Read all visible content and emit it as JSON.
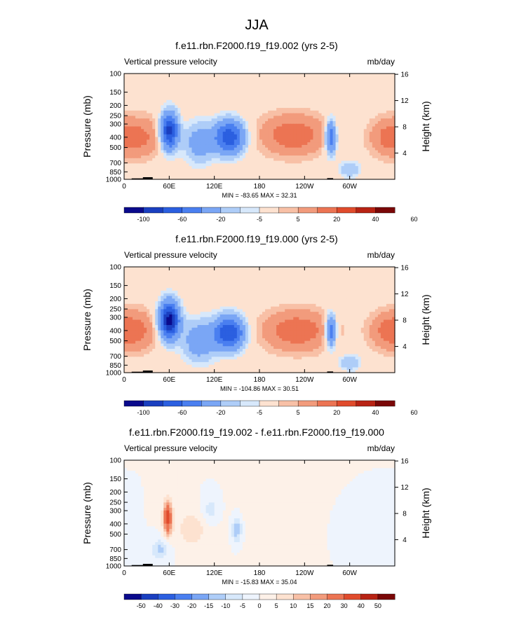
{
  "figure": {
    "title": "JJA",
    "colors": {
      "seq": [
        "#0a0a8c",
        "#1a3fc0",
        "#2b5fe0",
        "#4a7ff0",
        "#7aa6f5",
        "#aecdf8",
        "#d7e8fb",
        "#fde2d0",
        "#f8c0a6",
        "#f29b7c",
        "#ec7453",
        "#e04b2c",
        "#b82314",
        "#7a0707"
      ],
      "div": [
        "#0a0a8c",
        "#1a3fc0",
        "#2b5fe0",
        "#4a7ff0",
        "#7aa6f5",
        "#aecdf8",
        "#d7e8fb",
        "#eef4fd",
        "#fdf1e8",
        "#fde2d0",
        "#f8c0a6",
        "#f29b7c",
        "#ec7453",
        "#e04b2c",
        "#b82314",
        "#7a0707"
      ]
    }
  },
  "chart_data": [
    {
      "type": "heatmap",
      "title": "f.e11.rbn.F2000.f19_f19.002 (yrs 2-5)",
      "left_label": "Vertical pressure velocity",
      "right_label": "mb/day",
      "ylabel": "Pressure (mb)",
      "y2label": "Height (km)",
      "x_ticks": [
        "0",
        "60E",
        "120E",
        "180",
        "120W",
        "60W"
      ],
      "x_tick_values": [
        0,
        60,
        120,
        180,
        240,
        300
      ],
      "xlim": [
        0,
        360
      ],
      "y_ticks": [
        "100",
        "150",
        "200",
        "250",
        "300",
        "400",
        "500",
        "700",
        "850",
        "1000"
      ],
      "y_tick_values": [
        100,
        150,
        200,
        250,
        300,
        400,
        500,
        700,
        850,
        1000
      ],
      "ylim": [
        1000,
        100
      ],
      "y2_ticks": [
        "4",
        "8",
        "12",
        "16"
      ],
      "y2_tick_values": [
        4,
        8,
        12,
        16
      ],
      "stats": "MIN = -83.65   MAX =  32.31",
      "colorbar": {
        "palette": "seq",
        "labels": [
          "-100",
          "-60",
          "-20",
          "-5",
          "5",
          "20",
          "40",
          "60"
        ]
      },
      "features": [
        {
          "lon": 60,
          "p": 350,
          "amp": -90,
          "sx": 8,
          "sy": 0.55
        },
        {
          "lon": 140,
          "p": 400,
          "amp": -75,
          "sx": 14,
          "sy": 0.5
        },
        {
          "lon": 100,
          "p": 450,
          "amp": -30,
          "sx": 14,
          "sy": 0.6
        },
        {
          "lon": 275,
          "p": 400,
          "amp": -60,
          "sx": 5,
          "sy": 0.5
        },
        {
          "lon": 225,
          "p": 380,
          "amp": 28,
          "sx": 32,
          "sy": 0.65
        },
        {
          "lon": 350,
          "p": 400,
          "amp": 22,
          "sx": 18,
          "sy": 0.6
        },
        {
          "lon": 25,
          "p": 400,
          "amp": 20,
          "sx": 20,
          "sy": 0.65
        },
        {
          "lon": 300,
          "p": 800,
          "amp": -20,
          "sx": 10,
          "sy": 0.25
        }
      ],
      "orography": [
        {
          "lon0": 10,
          "lon1": 32,
          "p": 980
        },
        {
          "lon0": 25,
          "lon1": 38,
          "p": 955
        },
        {
          "lon0": 270,
          "lon1": 278,
          "p": 975
        }
      ]
    },
    {
      "type": "heatmap",
      "title": "f.e11.rbn.F2000.f19_f19.000 (yrs 2-5)",
      "left_label": "Vertical pressure velocity",
      "right_label": "mb/day",
      "ylabel": "Pressure (mb)",
      "y2label": "Height (km)",
      "x_ticks": [
        "0",
        "60E",
        "120E",
        "180",
        "120W",
        "60W"
      ],
      "x_tick_values": [
        0,
        60,
        120,
        180,
        240,
        300
      ],
      "xlim": [
        0,
        360
      ],
      "y_ticks": [
        "100",
        "150",
        "200",
        "250",
        "300",
        "400",
        "500",
        "700",
        "850",
        "1000"
      ],
      "y_tick_values": [
        100,
        150,
        200,
        250,
        300,
        400,
        500,
        700,
        850,
        1000
      ],
      "ylim": [
        1000,
        100
      ],
      "y2_ticks": [
        "4",
        "8",
        "12",
        "16"
      ],
      "y2_tick_values": [
        4,
        8,
        12,
        16
      ],
      "stats": "MIN = -104.86   MAX =  30.51",
      "colorbar": {
        "palette": "seq",
        "labels": [
          "-100",
          "-60",
          "-20",
          "-5",
          "5",
          "20",
          "40",
          "60"
        ]
      },
      "features": [
        {
          "lon": 60,
          "p": 320,
          "amp": -110,
          "sx": 9,
          "sy": 0.55
        },
        {
          "lon": 140,
          "p": 420,
          "amp": -80,
          "sx": 14,
          "sy": 0.5
        },
        {
          "lon": 100,
          "p": 500,
          "amp": -35,
          "sx": 15,
          "sy": 0.6
        },
        {
          "lon": 275,
          "p": 400,
          "amp": -60,
          "sx": 5,
          "sy": 0.5
        },
        {
          "lon": 230,
          "p": 400,
          "amp": 28,
          "sx": 34,
          "sy": 0.65
        },
        {
          "lon": 350,
          "p": 400,
          "amp": 22,
          "sx": 18,
          "sy": 0.6
        },
        {
          "lon": 20,
          "p": 400,
          "amp": 20,
          "sx": 18,
          "sy": 0.65
        },
        {
          "lon": 300,
          "p": 800,
          "amp": -20,
          "sx": 10,
          "sy": 0.25
        }
      ],
      "orography": [
        {
          "lon0": 10,
          "lon1": 32,
          "p": 980
        },
        {
          "lon0": 25,
          "lon1": 38,
          "p": 955
        },
        {
          "lon0": 270,
          "lon1": 278,
          "p": 975
        }
      ]
    },
    {
      "type": "heatmap",
      "title": "f.e11.rbn.F2000.f19_f19.002 - f.e11.rbn.F2000.f19_f19.000",
      "left_label": "Vertical pressure velocity",
      "right_label": "mb/day",
      "ylabel": "Pressure (mb)",
      "y2label": "Height (km)",
      "x_ticks": [
        "0",
        "60E",
        "120E",
        "180",
        "120W",
        "60W"
      ],
      "x_tick_values": [
        0,
        60,
        120,
        180,
        240,
        300
      ],
      "xlim": [
        0,
        360
      ],
      "y_ticks": [
        "100",
        "150",
        "200",
        "250",
        "300",
        "400",
        "500",
        "700",
        "850",
        "1000"
      ],
      "y_tick_values": [
        100,
        150,
        200,
        250,
        300,
        400,
        500,
        700,
        850,
        1000
      ],
      "ylim": [
        1000,
        100
      ],
      "y2_ticks": [
        "4",
        "8",
        "12",
        "16"
      ],
      "y2_tick_values": [
        4,
        8,
        12,
        16
      ],
      "stats": "MIN = -15.83   MAX =  35.04",
      "colorbar": {
        "palette": "div",
        "labels": [
          "-50",
          "-40",
          "-30",
          "-20",
          "-15",
          "-10",
          "-5",
          "0",
          "5",
          "10",
          "15",
          "20",
          "30",
          "40",
          "50"
        ]
      },
      "features": [
        {
          "lon": 58,
          "p": 350,
          "amp": 35,
          "sx": 4,
          "sy": 0.5
        },
        {
          "lon": 48,
          "p": 700,
          "amp": -12,
          "sx": 8,
          "sy": 0.3
        },
        {
          "lon": 150,
          "p": 450,
          "amp": -15,
          "sx": 5,
          "sy": 0.4
        },
        {
          "lon": 115,
          "p": 300,
          "amp": -8,
          "sx": 8,
          "sy": 0.4
        },
        {
          "lon": 90,
          "p": 450,
          "amp": 8,
          "sx": 15,
          "sy": 0.6
        },
        {
          "lon": 200,
          "p": 400,
          "amp": 3,
          "sx": 40,
          "sy": 0.8
        },
        {
          "lon": 310,
          "p": 450,
          "amp": -4,
          "sx": 20,
          "sy": 0.6
        }
      ],
      "orography": [
        {
          "lon0": 10,
          "lon1": 32,
          "p": 980
        },
        {
          "lon0": 25,
          "lon1": 38,
          "p": 955
        },
        {
          "lon0": 270,
          "lon1": 278,
          "p": 975
        }
      ]
    }
  ]
}
